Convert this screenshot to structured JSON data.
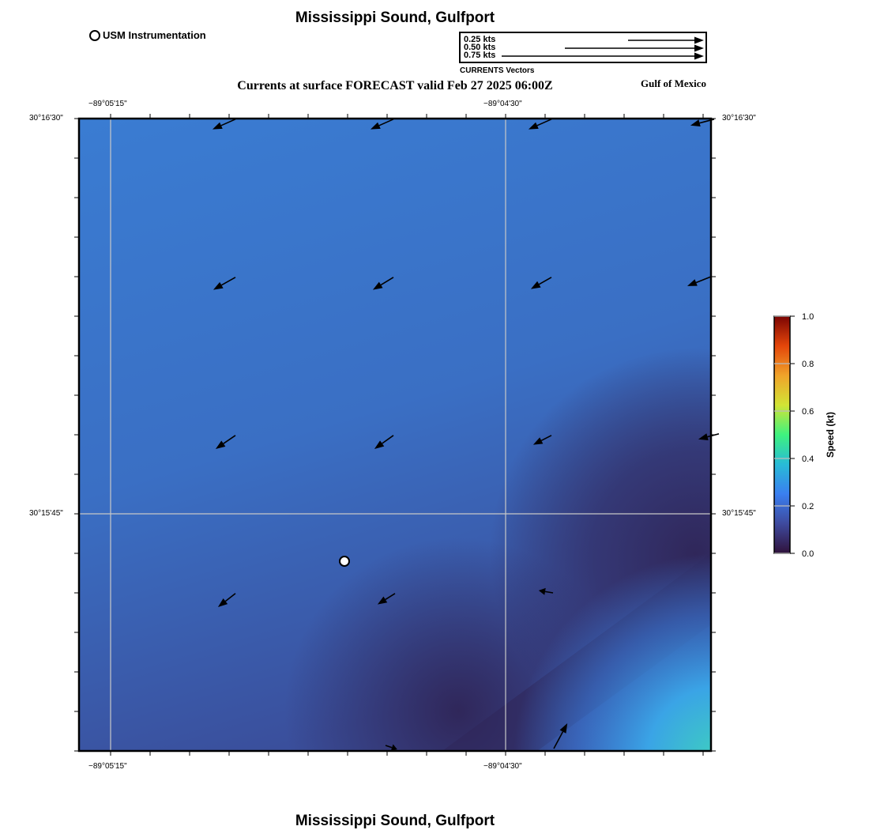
{
  "header": {
    "title": "Mississippi Sound, Gulfport",
    "subtitle": "Currents at surface FORECAST valid Feb 27 2025 06:00Z",
    "region": "Gulf of Mexico",
    "footer_title": "Mississippi Sound, Gulfport"
  },
  "station_legend": {
    "label": "USM Instrumentation",
    "icon": "circle-marker-icon"
  },
  "vector_legend": {
    "title": "CURRENTS Vectors",
    "entries": [
      {
        "label": "0.25 kts",
        "speed": 0.25
      },
      {
        "label": "0.50 kts",
        "speed": 0.5
      },
      {
        "label": "0.75 kts",
        "speed": 0.75
      }
    ]
  },
  "axes": {
    "top_labels": [
      "−89°05'15\"",
      "−89°04'30\""
    ],
    "bottom_labels": [
      "−89°05'15\"",
      "−89°04'30\""
    ],
    "left_labels": [
      "30°16'30\"",
      "30°15'45\""
    ],
    "right_labels": [
      "30°16'30\"",
      "30°15'45\""
    ],
    "lon_range": [
      -89.0885,
      -89.0685
    ],
    "lat_range": [
      30.255,
      30.275
    ]
  },
  "colorbar": {
    "label": "Speed (kt)",
    "ticks": [
      "1.0",
      "0.8",
      "0.6",
      "0.4",
      "0.2",
      "0.0"
    ],
    "range": [
      0,
      1
    ],
    "colors": [
      "#7a0403",
      "#e4460a",
      "#f0a32a",
      "#d2e435",
      "#3ef27f",
      "#28bbd7",
      "#3a7ff0",
      "#3e4a9e",
      "#30123b"
    ]
  },
  "chart_data": {
    "type": "vector-field",
    "title": "Currents at surface FORECAST valid Feb 27 2025 06:00Z",
    "units": "kts",
    "station": {
      "name": "USM Instrumentation",
      "lon": -89.0801,
      "lat": 30.261
    },
    "vectors": [
      {
        "lon": -89.08355,
        "lat": 30.27498,
        "u": -0.088,
        "v": -0.039
      },
      {
        "lon": -89.07855,
        "lat": 30.27498,
        "u": -0.088,
        "v": -0.039
      },
      {
        "lon": -89.07355,
        "lat": 30.27498,
        "u": -0.088,
        "v": -0.039
      },
      {
        "lon": -89.0684,
        "lat": 30.27498,
        "u": -0.091,
        "v": -0.024
      },
      {
        "lon": -89.08355,
        "lat": 30.26998,
        "u": -0.085,
        "v": -0.048
      },
      {
        "lon": -89.07855,
        "lat": 30.26998,
        "u": -0.079,
        "v": -0.048
      },
      {
        "lon": -89.07355,
        "lat": 30.26998,
        "u": -0.079,
        "v": -0.045
      },
      {
        "lon": -89.0685,
        "lat": 30.27,
        "u": -0.091,
        "v": -0.036
      },
      {
        "lon": -89.08355,
        "lat": 30.26498,
        "u": -0.076,
        "v": -0.052
      },
      {
        "lon": -89.07855,
        "lat": 30.26498,
        "u": -0.073,
        "v": -0.052
      },
      {
        "lon": -89.07355,
        "lat": 30.26498,
        "u": -0.07,
        "v": -0.036
      },
      {
        "lon": -89.06825,
        "lat": 30.26503,
        "u": -0.079,
        "v": -0.021
      },
      {
        "lon": -89.08355,
        "lat": 30.25998,
        "u": -0.067,
        "v": -0.052
      },
      {
        "lon": -89.0785,
        "lat": 30.25998,
        "u": -0.067,
        "v": -0.042
      },
      {
        "lon": -89.0735,
        "lat": 30.26,
        "u": -0.055,
        "v": 0.009
      },
      {
        "lon": -89.0788,
        "lat": 30.255175,
        "u": 0.045,
        "v": -0.015
      },
      {
        "lon": -89.073475,
        "lat": 30.255075,
        "u": 0.052,
        "v": 0.097
      }
    ]
  }
}
